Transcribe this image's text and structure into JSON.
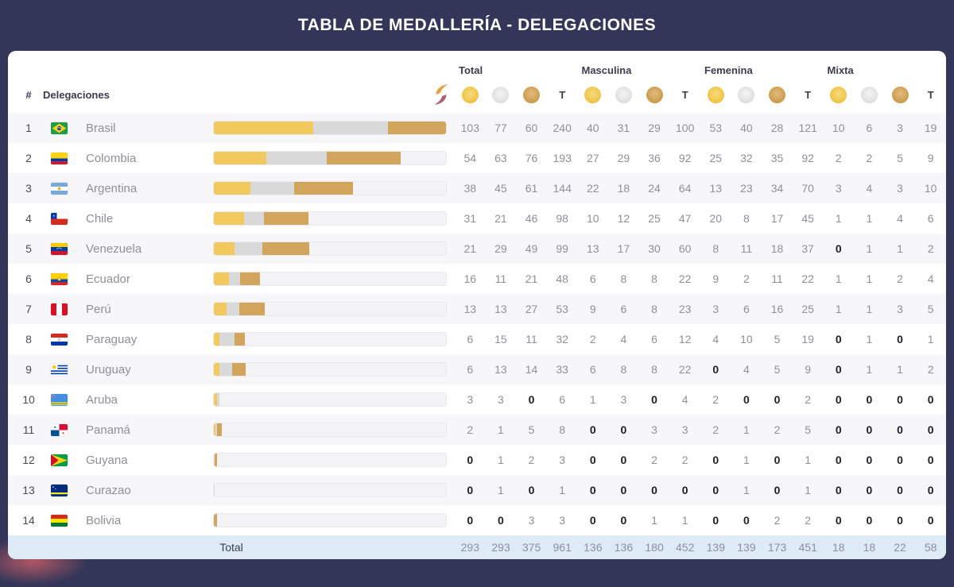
{
  "header": {
    "title": "TABLA DE MEDALLERÍA - DELEGACIONES"
  },
  "table": {
    "rank_header": "#",
    "delegations_header": "Delegaciones",
    "t_label": "T",
    "total_label": "Total",
    "bar_max": 240,
    "groups": [
      {
        "label": "Total"
      },
      {
        "label": "Masculina"
      },
      {
        "label": "Femenina"
      },
      {
        "label": "Mixta"
      }
    ],
    "medal_colors": {
      "gold": "#f2c95c",
      "silver": "#d9d9d9",
      "bronze": "#d2a55c"
    },
    "rows": [
      {
        "rank": 1,
        "flag": "brasil",
        "name": "Brasil",
        "values": [
          103,
          77,
          60,
          240,
          40,
          31,
          29,
          100,
          53,
          40,
          28,
          121,
          10,
          6,
          3,
          19
        ]
      },
      {
        "rank": 2,
        "flag": "colombia",
        "name": "Colombia",
        "values": [
          54,
          63,
          76,
          193,
          27,
          29,
          36,
          92,
          25,
          32,
          35,
          92,
          2,
          2,
          5,
          9
        ]
      },
      {
        "rank": 3,
        "flag": "argentina",
        "name": "Argentina",
        "values": [
          38,
          45,
          61,
          144,
          22,
          18,
          24,
          64,
          13,
          23,
          34,
          70,
          3,
          4,
          3,
          10
        ]
      },
      {
        "rank": 4,
        "flag": "chile",
        "name": "Chile",
        "values": [
          31,
          21,
          46,
          98,
          10,
          12,
          25,
          47,
          20,
          8,
          17,
          45,
          1,
          1,
          4,
          6
        ]
      },
      {
        "rank": 5,
        "flag": "venezuela",
        "name": "Venezuela",
        "values": [
          21,
          29,
          49,
          99,
          13,
          17,
          30,
          60,
          8,
          11,
          18,
          37,
          0,
          1,
          1,
          2
        ]
      },
      {
        "rank": 6,
        "flag": "ecuador",
        "name": "Ecuador",
        "values": [
          16,
          11,
          21,
          48,
          6,
          8,
          8,
          22,
          9,
          2,
          11,
          22,
          1,
          1,
          2,
          4
        ]
      },
      {
        "rank": 7,
        "flag": "peru",
        "name": "Perú",
        "values": [
          13,
          13,
          27,
          53,
          9,
          6,
          8,
          23,
          3,
          6,
          16,
          25,
          1,
          1,
          3,
          5
        ]
      },
      {
        "rank": 8,
        "flag": "paraguay",
        "name": "Paraguay",
        "values": [
          6,
          15,
          11,
          32,
          2,
          4,
          6,
          12,
          4,
          10,
          5,
          19,
          0,
          1,
          0,
          1
        ]
      },
      {
        "rank": 9,
        "flag": "uruguay",
        "name": "Uruguay",
        "values": [
          6,
          13,
          14,
          33,
          6,
          8,
          8,
          22,
          0,
          4,
          5,
          9,
          0,
          1,
          1,
          2
        ]
      },
      {
        "rank": 10,
        "flag": "aruba",
        "name": "Aruba",
        "values": [
          3,
          3,
          0,
          6,
          1,
          3,
          0,
          4,
          2,
          0,
          0,
          2,
          0,
          0,
          0,
          0
        ]
      },
      {
        "rank": 11,
        "flag": "panama",
        "name": "Panamá",
        "values": [
          2,
          1,
          5,
          8,
          0,
          0,
          3,
          3,
          2,
          1,
          2,
          5,
          0,
          0,
          0,
          0
        ]
      },
      {
        "rank": 12,
        "flag": "guyana",
        "name": "Guyana",
        "values": [
          0,
          1,
          2,
          3,
          0,
          0,
          2,
          2,
          0,
          1,
          0,
          1,
          0,
          0,
          0,
          0
        ]
      },
      {
        "rank": 13,
        "flag": "curazao",
        "name": "Curazao",
        "values": [
          0,
          1,
          0,
          1,
          0,
          0,
          0,
          0,
          0,
          1,
          0,
          1,
          0,
          0,
          0,
          0
        ]
      },
      {
        "rank": 14,
        "flag": "bolivia",
        "name": "Bolivia",
        "values": [
          0,
          0,
          3,
          3,
          0,
          0,
          1,
          1,
          0,
          0,
          2,
          2,
          0,
          0,
          0,
          0
        ]
      }
    ],
    "totals": [
      293,
      293,
      375,
      961,
      136,
      136,
      180,
      452,
      139,
      139,
      173,
      451,
      18,
      18,
      22,
      58
    ]
  },
  "theme": {
    "navy": "#343659",
    "stripe": "#f7f7fa",
    "total_row_bg": "#dcebf6"
  }
}
